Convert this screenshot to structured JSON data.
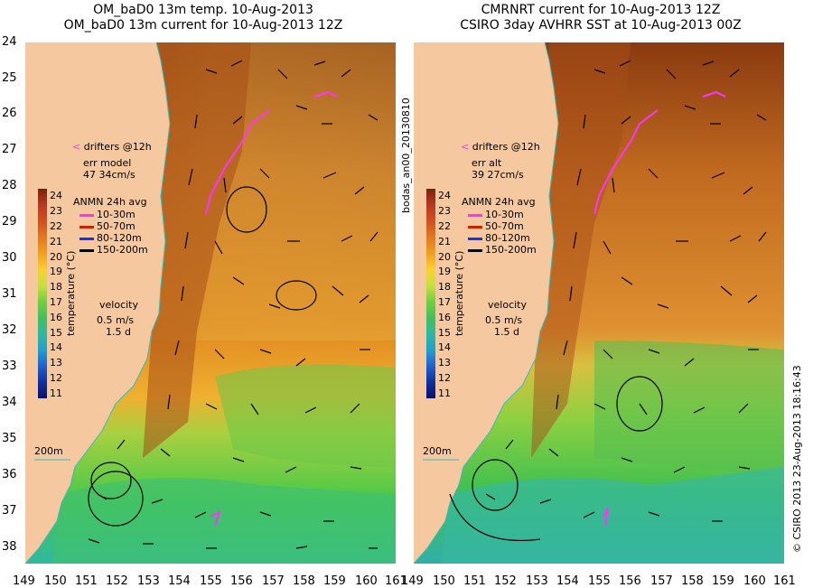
{
  "left": {
    "title_line1": "OM_baD0 13m temp. 10-Aug-2013",
    "title_line2": "OM_baD0 13m current for 10-Aug-2013 12Z",
    "drifters": "drifters @12h",
    "err_line1": "err model",
    "err_line2": "47 34cm/s",
    "anmn": "ANMN 24h avg",
    "depths": [
      "10-30m",
      "50-70m",
      "80-120m",
      "150-200m"
    ],
    "velocity": "velocity",
    "vel_speed": "0.5 m/s",
    "vel_time": "1.5 d",
    "isobath": "200m"
  },
  "right": {
    "title_line1": "CMRNRT current for 10-Aug-2013 12Z",
    "title_line2": "CSIRO 3day AVHRR SST at 10-Aug-2013 00Z",
    "drifters": "drifters @12h",
    "err_line1": "err alt",
    "err_line2": "39 27cm/s",
    "anmn": "ANMN 24h avg",
    "depths": [
      "10-30m",
      "50-70m",
      "80-120m",
      "150-200m"
    ],
    "velocity": "velocity",
    "vel_speed": "0.5 m/s",
    "vel_time": "1.5 d",
    "isobath": "200m"
  },
  "colorbar_ticks": [
    "24",
    "23",
    "22",
    "21",
    "20",
    "19",
    "18",
    "17",
    "16",
    "15",
    "14",
    "13",
    "12",
    "11"
  ],
  "colorbar_label": "temperature (°C)",
  "depth_colors": [
    "#ff33ff",
    "#cc2200",
    "#1133ff",
    "#000000"
  ],
  "lat_labels": [
    "24",
    "25",
    "26",
    "27",
    "28",
    "29",
    "30",
    "31",
    "32",
    "33",
    "34",
    "35",
    "36",
    "37",
    "38"
  ],
  "lon_labels": [
    "149",
    "150",
    "151",
    "152",
    "153",
    "154",
    "155",
    "156",
    "157",
    "158",
    "159",
    "160",
    "161"
  ],
  "side_label": "bodas_an00_20130810",
  "copyright": "© CSIRO 2013   23-Aug-2013 18:16:43"
}
